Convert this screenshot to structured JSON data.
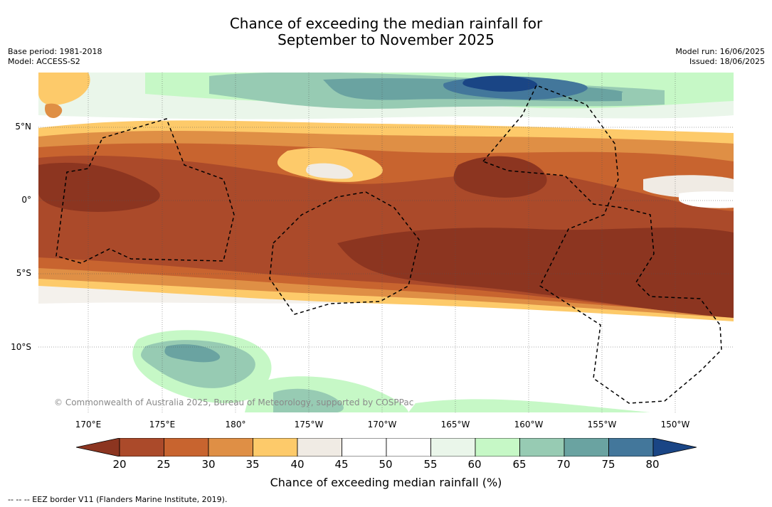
{
  "title": {
    "line1": "Chance of exceeding the median rainfall for",
    "line2": "September to November 2025"
  },
  "meta": {
    "base_period": "Base period: 1981-2018",
    "model": "Model: ACCESS-S2",
    "model_run": "Model run: 16/06/2025",
    "issued": "Issued: 18/06/2025"
  },
  "map": {
    "lat_labels": [
      "5°N",
      "0°",
      "5°S",
      "10°S"
    ],
    "lon_labels": [
      "170°E",
      "175°E",
      "180°",
      "175°W",
      "170°W",
      "165°W",
      "160°W",
      "155°W",
      "150°W"
    ],
    "credit": "© Commonwealth of Australia 2025, Bureau of Meteorology, supported by COSPPac",
    "background_color": "#ffffff",
    "eez_line_style": "dashed black"
  },
  "colorbar": {
    "label": "Chance of exceeding median rainfall (%)",
    "ticks": [
      "20",
      "25",
      "30",
      "35",
      "40",
      "45",
      "50",
      "55",
      "60",
      "65",
      "70",
      "75",
      "80"
    ],
    "colors": [
      "#8c3520",
      "#ab4a2a",
      "#c8642f",
      "#df8f45",
      "#fdca6a",
      "#f0ebe4",
      "#ffffff",
      "#ffffff",
      "#eaf6ea",
      "#c6f8c6",
      "#97cbb3",
      "#6aa3a1",
      "#43779b",
      "#1a4585"
    ]
  },
  "legend": {
    "eez": "--  --  -- EEZ border V11 (Flanders Marine Institute, 2019)."
  }
}
